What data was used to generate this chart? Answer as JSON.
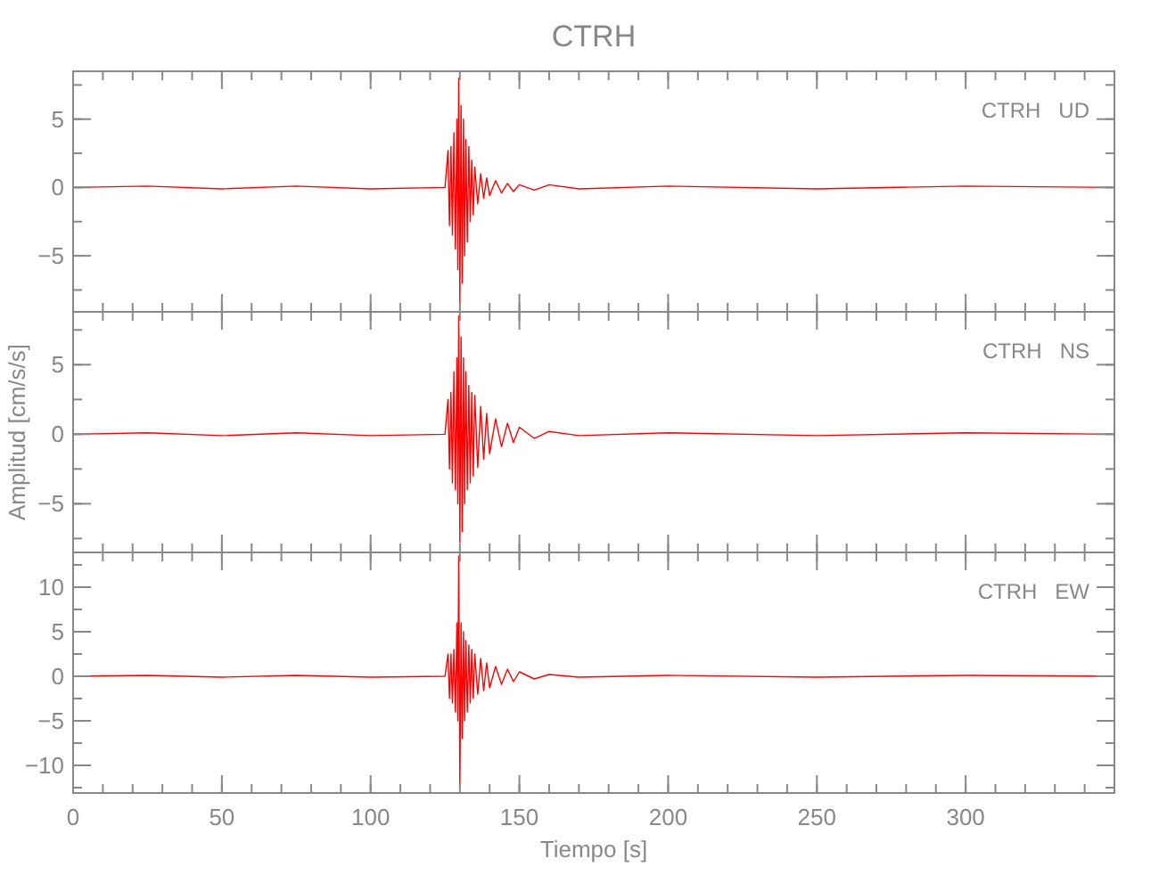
{
  "chart_data": [
    {
      "type": "line",
      "title": "CTRH",
      "annotations": [
        "CTRH   UD"
      ],
      "tick_labels": "y",
      "x": [
        0,
        25,
        50,
        75,
        100,
        125,
        126,
        126.5,
        127,
        127.5,
        128,
        128.5,
        129,
        129.3,
        129.6,
        130,
        130.4,
        130.8,
        131.2,
        131.6,
        132,
        132.5,
        133,
        133.5,
        134,
        134.5,
        135,
        136,
        137,
        138,
        139,
        140,
        142,
        144,
        146,
        148,
        150,
        155,
        160,
        170,
        200,
        250,
        300,
        350
      ],
      "series": [
        {
          "color": "#ff0000",
          "values": [
            0,
            0.1,
            -0.1,
            0.1,
            -0.1,
            0,
            2.7,
            -2.8,
            3,
            -3.5,
            4,
            -4.5,
            5,
            -6,
            8,
            -8.5,
            6,
            -7,
            5,
            -5,
            3.5,
            -4,
            3,
            -2.5,
            2,
            -2,
            1.5,
            -1.2,
            1,
            -0.8,
            0.7,
            -0.6,
            0.5,
            -0.4,
            0.3,
            -0.3,
            0.2,
            -0.2,
            0.2,
            -0.1,
            0.1,
            -0.1,
            0.1,
            0
          ]
        }
      ],
      "xlim": [
        0,
        350
      ],
      "xticks": [
        0,
        50,
        100,
        150,
        200,
        250,
        300
      ],
      "ylim": [
        -9.1,
        8.5
      ],
      "yticks": [
        -5,
        0,
        5
      ]
    },
    {
      "type": "line",
      "ylabel": "Amplitud [cm/s/s]",
      "annotations": [
        "CTRH   NS"
      ],
      "tick_labels": "y",
      "x": [
        0,
        25,
        50,
        75,
        100,
        125,
        126,
        126.5,
        127,
        127.5,
        128,
        128.5,
        129,
        129.3,
        129.6,
        130,
        130.4,
        130.8,
        131.2,
        131.6,
        132,
        132.5,
        133,
        133.5,
        134,
        134.5,
        135,
        136,
        137,
        138,
        139,
        140,
        142,
        144,
        146,
        148,
        150,
        155,
        160,
        170,
        200,
        250,
        300,
        350
      ],
      "series": [
        {
          "color": "#ff0000",
          "values": [
            0,
            0.1,
            -0.1,
            0.1,
            -0.1,
            0,
            2.5,
            -2.5,
            3,
            -3.5,
            4.5,
            -4,
            5.5,
            -5,
            8.5,
            -7.8,
            7,
            -7,
            5.5,
            -5,
            4.5,
            -4,
            3.5,
            -3.5,
            3,
            -3,
            2.8,
            -2.4,
            2,
            -1.8,
            1.5,
            -1.4,
            1.1,
            -0.9,
            0.8,
            -0.6,
            0.5,
            -0.3,
            0.2,
            -0.1,
            0.1,
            -0.1,
            0.1,
            0
          ]
        }
      ],
      "xlim": [
        0,
        350
      ],
      "xticks": [
        0,
        50,
        100,
        150,
        200,
        250,
        300
      ],
      "ylim": [
        -8.5,
        8.8
      ],
      "yticks": [
        -5,
        0,
        5
      ]
    },
    {
      "type": "line",
      "xlabel": "Tiempo [s]",
      "annotations": [
        "CTRH   EW"
      ],
      "x": [
        0,
        25,
        50,
        75,
        100,
        125,
        126,
        126.5,
        127,
        127.5,
        128,
        128.5,
        129,
        129.3,
        129.6,
        130,
        130.4,
        130.8,
        131.2,
        131.6,
        132,
        132.5,
        133,
        133.5,
        134,
        134.5,
        135,
        136,
        137,
        138,
        139,
        140,
        142,
        144,
        146,
        148,
        150,
        155,
        160,
        170,
        200,
        250,
        300,
        350
      ],
      "series": [
        {
          "color": "#ff0000",
          "values": [
            0,
            0.1,
            -0.1,
            0.1,
            -0.1,
            0,
            2.5,
            -2.5,
            2.5,
            -3,
            3,
            -4,
            6,
            -5,
            13.5,
            -12.5,
            6,
            -7,
            5,
            -5,
            4,
            -4,
            3.5,
            -3,
            3,
            -2.5,
            2.5,
            -2,
            2,
            -1.6,
            1.5,
            -1.3,
            1.1,
            -0.9,
            0.8,
            -0.6,
            0.5,
            -0.3,
            0.2,
            -0.1,
            0.1,
            -0.1,
            0.1,
            0
          ]
        }
      ],
      "xlim": [
        0,
        350
      ],
      "xticks": [
        0,
        50,
        100,
        150,
        200,
        250,
        300
      ],
      "ylim": [
        -13.1,
        13.9
      ],
      "yticks": [
        -10,
        -5,
        0,
        5,
        10
      ]
    }
  ]
}
